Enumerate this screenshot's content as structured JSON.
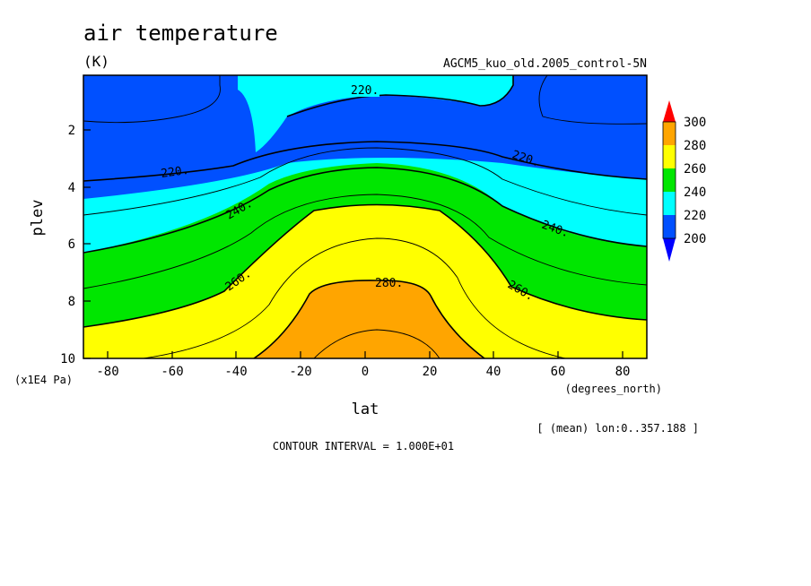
{
  "chart_data": {
    "type": "heatmap",
    "title": "air temperature",
    "units": "(K)",
    "dataset": "AGCM5_kuo_old.2005_control-5N",
    "xlabel": "lat",
    "xunits": "(degrees_north)",
    "ylabel": "plev",
    "yunits": "(x1E4 Pa)",
    "x_ticks": [
      "-80",
      "-60",
      "-40",
      "-20",
      "0",
      "20",
      "40",
      "60",
      "80"
    ],
    "y_ticks": [
      "2",
      "4",
      "6",
      "8",
      "10"
    ],
    "xlim": [
      -87.9,
      87.9
    ],
    "ylim": [
      10,
      0.2
    ],
    "mean_note": "[ (mean) lon:0..357.188 ]",
    "contour_interval": "CONTOUR INTERVAL = 1.000E+01",
    "contour_labels": [
      "220.",
      "220.",
      "220.",
      "240.",
      "240.",
      "260.",
      "260.",
      "280."
    ],
    "colorbar": {
      "levels": [
        "300",
        "280",
        "260",
        "240",
        "220",
        "200"
      ],
      "colors": [
        "#ff0000",
        "#ffa500",
        "#ffff00",
        "#00e600",
        "#00ffff",
        "#0050ff",
        "#0000ff"
      ]
    },
    "fill_colors": {
      "below_210": "#0050ff",
      "210_230": "#00ffff",
      "230_250": "#00e600",
      "250_270": "#ffff00",
      "270_290": "#ffa500"
    }
  }
}
